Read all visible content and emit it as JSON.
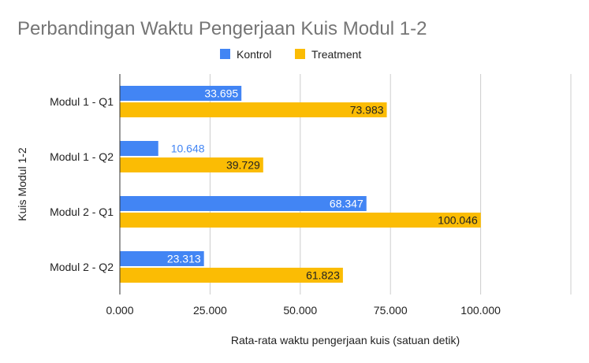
{
  "chart_data": {
    "type": "bar",
    "orientation": "horizontal",
    "title": "Perbandingan Waktu Pengerjaan Kuis Modul 1-2",
    "xlabel": "Rata-rata waktu pengerjaan kuis (satuan detik)",
    "ylabel": "Kuis Modul 1-2",
    "categories": [
      "Modul 1 - Q1",
      "Modul 1 - Q2",
      "Modul 2 - Q1",
      "Modul 2 - Q2"
    ],
    "series": [
      {
        "name": "Kontrol",
        "color": "#4285f4",
        "values": [
          33.695,
          10.648,
          68.347,
          23.313
        ],
        "labels": [
          "33.695",
          "10.648",
          "68.347",
          "23.313"
        ]
      },
      {
        "name": "Treatment",
        "color": "#fbbc04",
        "values": [
          73.983,
          39.729,
          100.046,
          61.823
        ],
        "labels": [
          "73.983",
          "39.729",
          "100.046",
          "61.823"
        ]
      }
    ],
    "xlim": [
      0,
      125
    ],
    "xticks": [
      0,
      25,
      50,
      75,
      100
    ],
    "xtick_labels": [
      "0.000",
      "25.000",
      "50.000",
      "75.000",
      "100.000"
    ],
    "grid": true,
    "legend_position": "top"
  }
}
